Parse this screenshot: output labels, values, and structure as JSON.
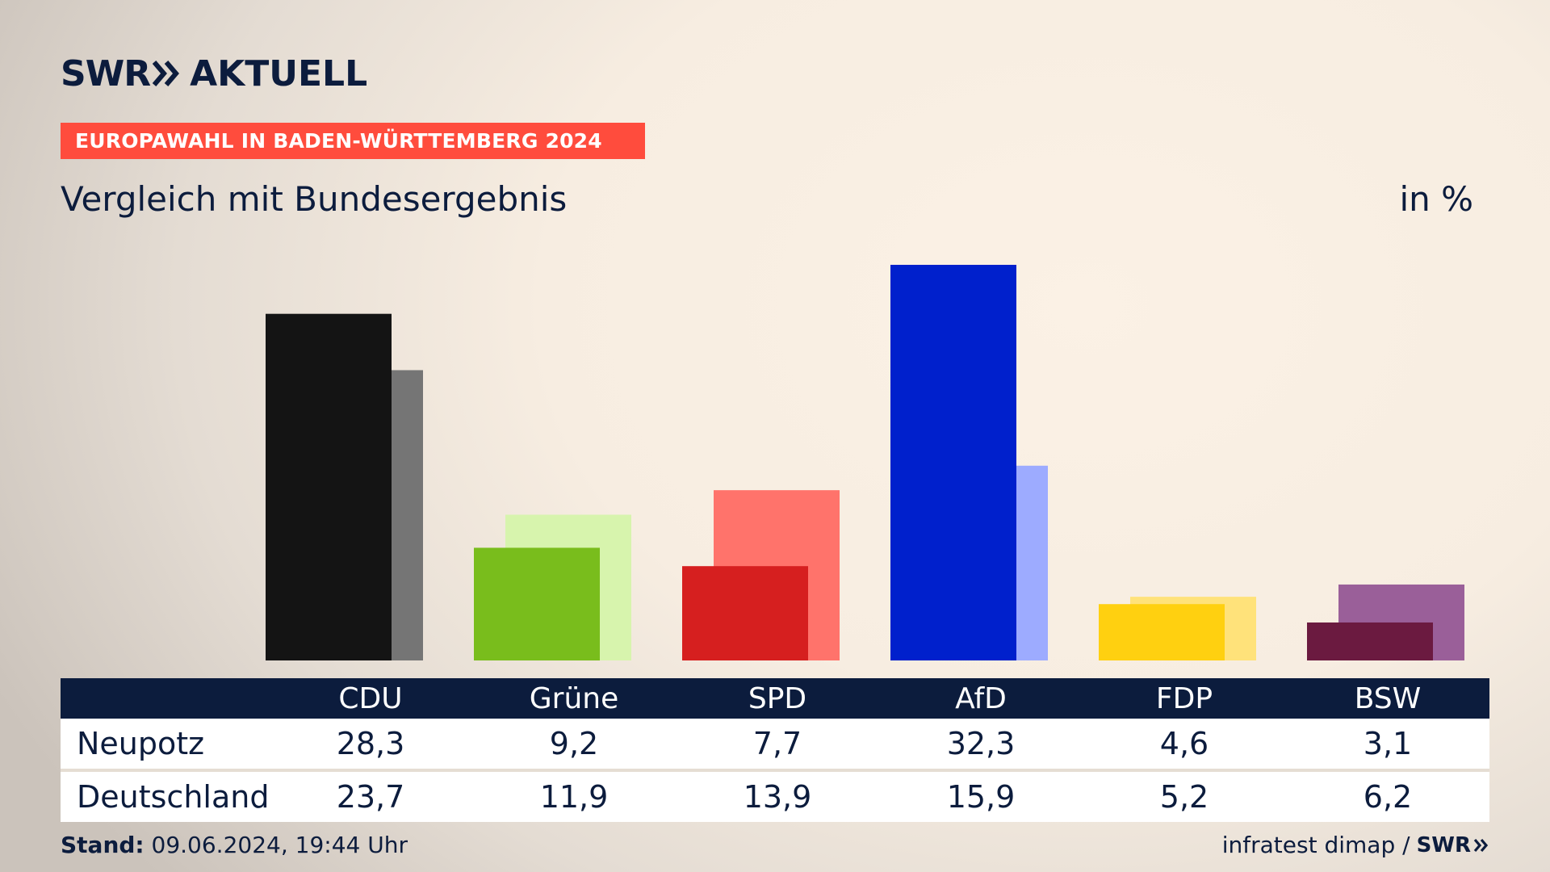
{
  "header": {
    "logo_swr": "SWR",
    "logo_aktuell": "AKTUELL",
    "banner": "EUROPAWAHL IN BADEN-WÜRTTEMBERG 2024",
    "subtitle": "Vergleich mit Bundesergebnis",
    "unit": "in %"
  },
  "chart_data": {
    "type": "bar",
    "title": "Vergleich mit Bundesergebnis",
    "unit": "in %",
    "categories": [
      "CDU",
      "Grüne",
      "SPD",
      "AfD",
      "FDP",
      "BSW"
    ],
    "series": [
      {
        "name": "Neupotz",
        "values": [
          28.3,
          9.2,
          7.7,
          32.3,
          4.6,
          3.1
        ]
      },
      {
        "name": "Deutschland",
        "values": [
          23.7,
          11.9,
          13.9,
          15.9,
          5.2,
          6.2
        ]
      }
    ],
    "colors": {
      "Neupotz": [
        "#141414",
        "#79bd1c",
        "#d61f1f",
        "#0020cc",
        "#ffd010",
        "#6b1a40"
      ],
      "Deutschland": [
        "#757575",
        "#d7f4ad",
        "#ff736b",
        "#9dabff",
        "#ffe27a",
        "#9a5f99"
      ]
    },
    "ylim": [
      0,
      32.3
    ],
    "grid": false
  },
  "table": {
    "rows": [
      {
        "label": "Neupotz",
        "values": [
          "28,3",
          "9,2",
          "7,7",
          "32,3",
          "4,6",
          "3,1"
        ]
      },
      {
        "label": "Deutschland",
        "values": [
          "23,7",
          "11,9",
          "13,9",
          "15,9",
          "5,2",
          "6,2"
        ]
      }
    ]
  },
  "footer": {
    "stand_label": "Stand:",
    "stand_value": " 09.06.2024, 19:44 Uhr",
    "source": "infratest dimap /",
    "source_logo": "SWR"
  }
}
